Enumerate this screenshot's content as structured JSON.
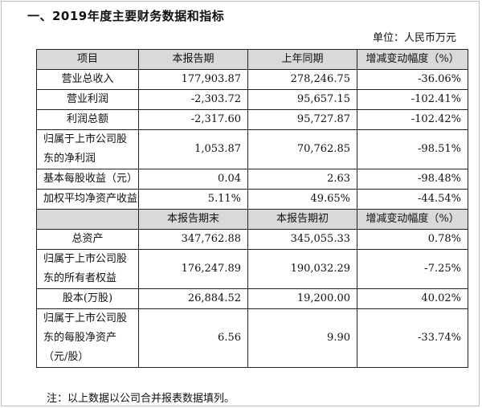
{
  "section_title": "一、2019年度主要财务数据和指标",
  "unit_label": "单位：人民币万元",
  "table1": {
    "headers": [
      "项目",
      "本报告期",
      "上年同期",
      "增减变动幅度（%）"
    ],
    "rows": [
      [
        "营业总收入",
        "177,903.87",
        "278,246.75",
        "-36.06%"
      ],
      [
        "营业利润",
        "-2,303.72",
        "95,657.15",
        "-102.41%"
      ],
      [
        "利润总额",
        "-2,317.60",
        "95,727.87",
        "-102.42%"
      ],
      [
        "归属于上市公司股东的净利润",
        "1,053.87",
        "70,762.85",
        "-98.51%"
      ],
      [
        "基本每股收益（元）",
        "0.04",
        "2.63",
        "-98.48%"
      ],
      [
        "加权平均净资产收益率",
        "5.11%",
        "49.65%",
        "-44.54%"
      ]
    ]
  },
  "table2": {
    "headers": [
      "",
      "本报告期末",
      "本报告期初",
      "增减变动幅度（%）"
    ],
    "rows": [
      [
        "总资产",
        "347,762.88",
        "345,055.33",
        "0.78%"
      ],
      [
        "归属于上市公司股东的所有者权益",
        "176,247.89",
        "190,032.29",
        "-7.25%"
      ],
      [
        "股本(万股)",
        "26,884.52",
        "19,200.00",
        "40.02%"
      ],
      [
        "归属于上市公司股东的每股净资产（元/股）",
        "6.56",
        "9.90",
        "-33.74%"
      ]
    ]
  },
  "footnote": "注：以上数据以公司合并报表数据填列。"
}
